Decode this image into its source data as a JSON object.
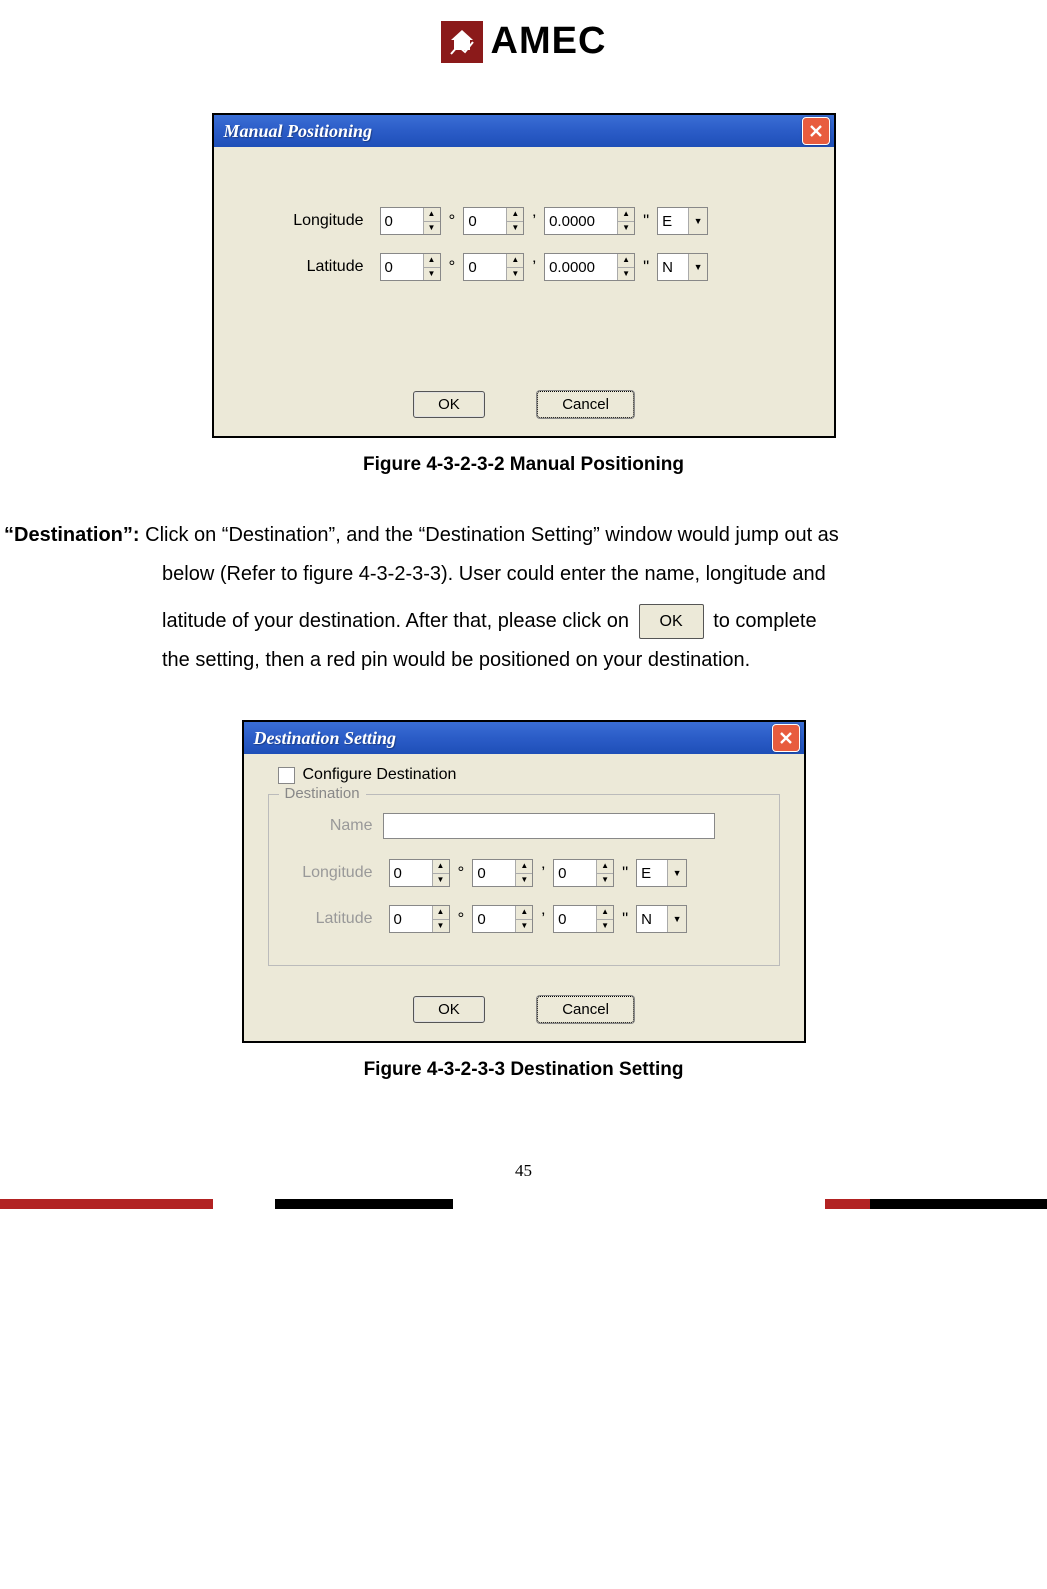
{
  "logo": {
    "text": "AMEC"
  },
  "dialog1": {
    "title": "Manual Positioning",
    "rows": [
      {
        "label": "Longitude",
        "deg": "0",
        "min": "0",
        "sec": "0.0000",
        "dir": "E",
        "wideSec": true
      },
      {
        "label": "Latitude",
        "deg": "0",
        "min": "0",
        "sec": "0.0000",
        "dir": "N",
        "wideSec": true
      }
    ],
    "buttons": {
      "ok": "OK",
      "cancel": "Cancel"
    }
  },
  "caption1": "Figure 4-3-2-3-2 Manual Positioning",
  "paragraph": {
    "lead": "“Destination”:",
    "l1_rest": " Click on “Destination”, and the “Destination Setting” window would jump out as",
    "l2": "below (Refer to figure 4-3-2-3-3). User could enter the name, longitude and",
    "l3a": "latitude of your destination. After that, please click on ",
    "l3_btn": "OK",
    "l3b": " to complete",
    "l4": "the setting, then a red pin would be positioned on your destination."
  },
  "dialog2": {
    "title": "Destination Setting",
    "checkbox_label": "Configure Destination",
    "fieldset_title": "Destination",
    "name_label": "Name",
    "rows": [
      {
        "label": "Longitude",
        "deg": "0",
        "min": "0",
        "sec": "0",
        "dir": "E",
        "wideSec": false
      },
      {
        "label": "Latitude",
        "deg": "0",
        "min": "0",
        "sec": "0",
        "dir": "N",
        "wideSec": false
      }
    ],
    "buttons": {
      "ok": "OK",
      "cancel": "Cancel"
    }
  },
  "caption2": "Figure 4-3-2-3-3 Destination Setting",
  "page_number": "45",
  "colors": {
    "titlebar_bg": "#2b5cc7",
    "close_bg": "#e85c3e",
    "dialog_bg": "#ece9d8",
    "footer_red": "#b22222"
  }
}
